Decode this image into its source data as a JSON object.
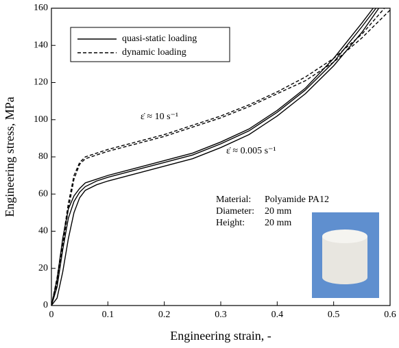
{
  "chart_data": {
    "type": "line",
    "xlabel": "Engineering strain, -",
    "ylabel": "Engineering stress, MPa",
    "xlim": [
      0,
      0.6
    ],
    "ylim": [
      0,
      160
    ],
    "xticks": [
      0,
      0.1,
      0.2,
      0.3,
      0.4,
      0.5,
      0.6
    ],
    "yticks": [
      0,
      20,
      40,
      60,
      80,
      100,
      120,
      140,
      160
    ],
    "legend": "upper left",
    "series": [
      {
        "name": "quasi-static loading",
        "color": "#000000",
        "dash": "solid",
        "x": [
          0,
          0.01,
          0.02,
          0.03,
          0.04,
          0.05,
          0.06,
          0.08,
          0.1,
          0.15,
          0.2,
          0.25,
          0.3,
          0.35,
          0.4,
          0.45,
          0.5,
          0.55,
          0.575
        ],
        "values": [
          0,
          10,
          30,
          47,
          56,
          61,
          64,
          67,
          69,
          73,
          77,
          81,
          87,
          94,
          104,
          116,
          131,
          150,
          160
        ]
      },
      {
        "color": "#000000",
        "dash": "solid",
        "x": [
          0,
          0.01,
          0.02,
          0.03,
          0.04,
          0.05,
          0.06,
          0.08,
          0.1,
          0.15,
          0.2,
          0.25,
          0.3,
          0.35,
          0.4,
          0.45,
          0.5,
          0.55,
          0.57
        ],
        "values": [
          0,
          14,
          36,
          52,
          59,
          63,
          66,
          68,
          70,
          74,
          78,
          82,
          88,
          95,
          105,
          117,
          133,
          152,
          160
        ]
      },
      {
        "color": "#000000",
        "dash": "solid",
        "x": [
          0,
          0.01,
          0.02,
          0.03,
          0.04,
          0.05,
          0.06,
          0.08,
          0.1,
          0.15,
          0.2,
          0.25,
          0.3,
          0.35,
          0.4,
          0.45,
          0.5,
          0.55,
          0.58
        ],
        "values": [
          0,
          4,
          18,
          36,
          50,
          58,
          62,
          65,
          67,
          71,
          75,
          79,
          85,
          92,
          102,
          114,
          129,
          147,
          160
        ]
      },
      {
        "name": "dynamic loading",
        "color": "#000000",
        "dash": "dashed",
        "x": [
          0,
          0.01,
          0.02,
          0.03,
          0.04,
          0.05,
          0.06,
          0.08,
          0.1,
          0.15,
          0.2,
          0.25,
          0.3,
          0.35,
          0.4,
          0.45,
          0.5,
          0.55,
          0.59
        ],
        "values": [
          0,
          15,
          35,
          55,
          70,
          77,
          80,
          82,
          84,
          88,
          92,
          97,
          102,
          108,
          115,
          123,
          133,
          146,
          160
        ]
      },
      {
        "color": "#000000",
        "dash": "dashed",
        "x": [
          0,
          0.01,
          0.02,
          0.03,
          0.04,
          0.05,
          0.06,
          0.08,
          0.1,
          0.15,
          0.2,
          0.25,
          0.3,
          0.35,
          0.4,
          0.45,
          0.5,
          0.55,
          0.6
        ],
        "values": [
          0,
          12,
          32,
          52,
          68,
          76,
          79,
          81,
          83,
          87,
          91,
          96,
          101,
          107,
          114,
          121,
          131,
          144,
          159
        ]
      }
    ],
    "annotations": [
      "ε̇ ≈ 10 s⁻¹",
      "ε̇ ≈ 0.005 s⁻¹"
    ],
    "info": [
      [
        "Material:",
        "Polyamide PA12"
      ],
      [
        "Diameter:",
        "20 mm"
      ],
      [
        "Height:",
        "20 mm"
      ]
    ]
  }
}
